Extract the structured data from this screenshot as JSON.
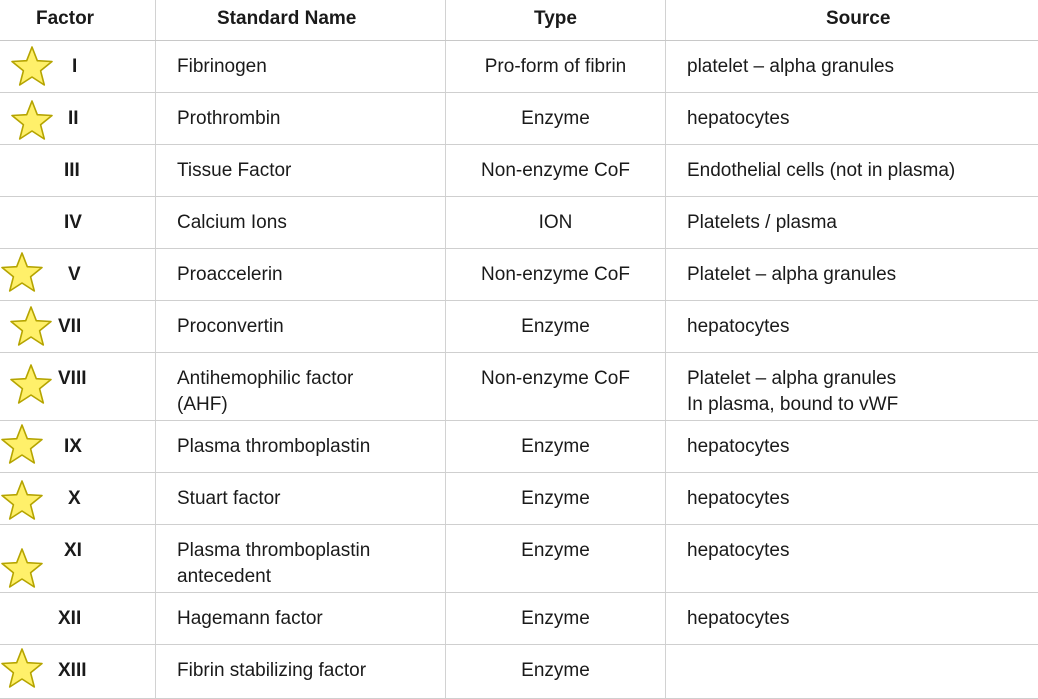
{
  "headers": {
    "factor": "Factor",
    "name": "Standard Name",
    "type": "Type",
    "source": "Source"
  },
  "icons": {
    "star": "star-icon",
    "star_fill": "#fff06a",
    "star_stroke": "#b5a400"
  },
  "rows": [
    {
      "factor": "I",
      "name": "Fibrinogen",
      "type": "Pro-form of fibrin",
      "source": "platelet – alpha granules",
      "starred": true
    },
    {
      "factor": "II",
      "name": "Prothrombin",
      "type": "Enzyme",
      "source": "hepatocytes",
      "starred": true
    },
    {
      "factor": "III",
      "name": "Tissue Factor",
      "type": "Non-enzyme CoF",
      "source": "Endothelial cells (not in plasma)",
      "starred": false
    },
    {
      "factor": "IV",
      "name": "Calcium Ions",
      "type": "ION",
      "source": "Platelets / plasma",
      "starred": false
    },
    {
      "factor": "V",
      "name": "Proaccelerin",
      "type": "Non-enzyme CoF",
      "source": "Platelet – alpha granules",
      "starred": true
    },
    {
      "factor": "VII",
      "name": "Proconvertin",
      "type": "Enzyme",
      "source": "hepatocytes",
      "starred": true
    },
    {
      "factor": "VIII",
      "name": "Antihemophilic factor",
      "name2": "(AHF)",
      "type": "Non-enzyme CoF",
      "source": "Platelet – alpha granules",
      "source2": "In plasma, bound to vWF",
      "starred": true
    },
    {
      "factor": "IX",
      "name": "Plasma thromboplastin",
      "type": "Enzyme",
      "source": "hepatocytes",
      "starred": true
    },
    {
      "factor": "X",
      "name": "Stuart factor",
      "type": "Enzyme",
      "source": "hepatocytes",
      "starred": true
    },
    {
      "factor": "XI",
      "name": "Plasma thromboplastin",
      "name2": "antecedent",
      "type": "Enzyme",
      "source": "hepatocytes",
      "starred": true
    },
    {
      "factor": "XII",
      "name": "Hagemann factor",
      "type": "Enzyme",
      "source": "hepatocytes",
      "starred": false
    },
    {
      "factor": "XIII",
      "name": "Fibrin stabilizing factor",
      "type": "Enzyme",
      "source": "",
      "starred": true
    }
  ]
}
